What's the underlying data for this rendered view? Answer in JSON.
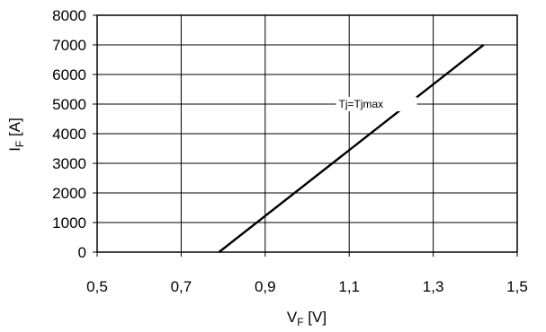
{
  "chart_data": {
    "type": "line",
    "title": "",
    "xlabel": {
      "main": "V",
      "sub": "F",
      "unit": " [V]"
    },
    "ylabel": {
      "main": "I",
      "sub": "F",
      "unit": " [A]"
    },
    "xlim": [
      0.5,
      1.5
    ],
    "ylim": [
      0,
      8000
    ],
    "x_ticks": [
      0.5,
      0.7,
      0.9,
      1.1,
      1.3,
      1.5
    ],
    "x_tick_labels": [
      "0,5",
      "0,7",
      "0,9",
      "1,1",
      "1,3",
      "1,5"
    ],
    "y_ticks": [
      0,
      1000,
      2000,
      3000,
      4000,
      5000,
      6000,
      7000,
      8000
    ],
    "y_tick_labels": [
      "0",
      "1000",
      "2000",
      "3000",
      "4000",
      "5000",
      "6000",
      "7000",
      "8000"
    ],
    "grid": true,
    "series": [
      {
        "name": "Tj=Tjmax",
        "x": [
          0.79,
          1.42
        ],
        "y": [
          0,
          7000
        ]
      }
    ],
    "annotations": [
      {
        "text": "Tj=Tjmax",
        "x": 1.075,
        "y": 5000
      }
    ],
    "colors": {
      "line": "#000000",
      "grid": "#000000",
      "frame": "#000000",
      "background": "#ffffff"
    }
  }
}
